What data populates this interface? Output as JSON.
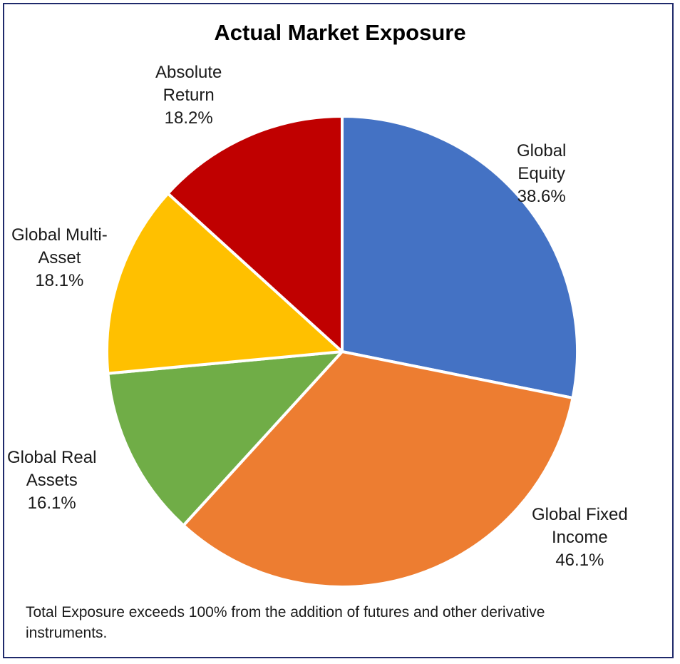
{
  "chart_data": {
    "type": "pie",
    "title": "Actual Market Exposure",
    "slices": [
      {
        "name_lines": [
          "Global",
          "Equity"
        ],
        "value": 38.6,
        "label": "38.6%",
        "color": "#4472c4"
      },
      {
        "name_lines": [
          "Global Fixed",
          "Income"
        ],
        "value": 46.1,
        "label": "46.1%",
        "color": "#ed7d31"
      },
      {
        "name_lines": [
          "Global Real",
          "Assets"
        ],
        "value": 16.1,
        "label": "16.1%",
        "color": "#70ad47"
      },
      {
        "name_lines": [
          "Global Multi-",
          "Asset"
        ],
        "value": 18.1,
        "label": "18.1%",
        "color": "#ffc000"
      },
      {
        "name_lines": [
          "Absolute",
          "Return"
        ],
        "value": 18.2,
        "label": "18.2%",
        "color": "#c00000"
      }
    ],
    "start_angle": "12 o'clock",
    "direction": "clockwise",
    "legend": "none"
  },
  "footnote": "Total Exposure exceeds 100% from the addition of futures and other derivative instruments."
}
